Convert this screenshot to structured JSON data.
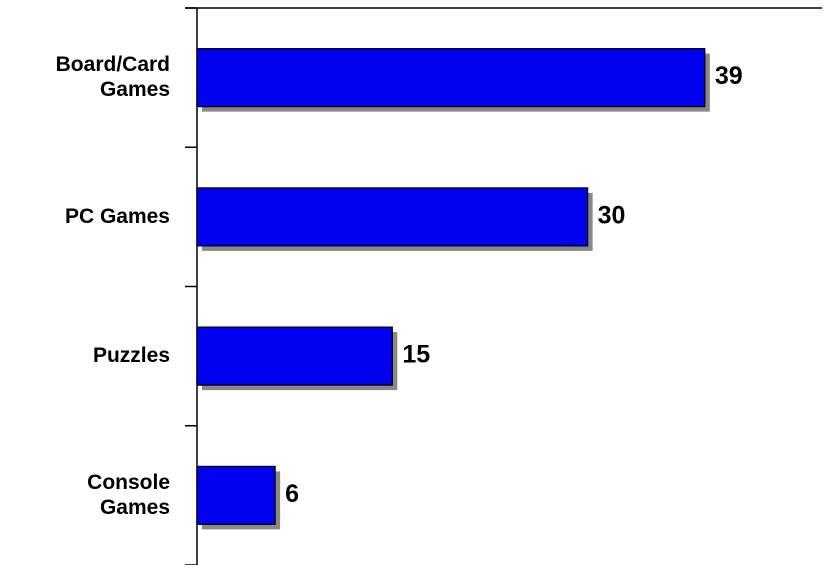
{
  "chart_data": {
    "type": "bar",
    "orientation": "horizontal",
    "categories": [
      "Board/Card\nGames",
      "PC Games",
      "Puzzles",
      "Console\nGames"
    ],
    "values": [
      39,
      30,
      15,
      6
    ],
    "color": "#0000ee",
    "xlim": [
      0,
      48
    ]
  }
}
